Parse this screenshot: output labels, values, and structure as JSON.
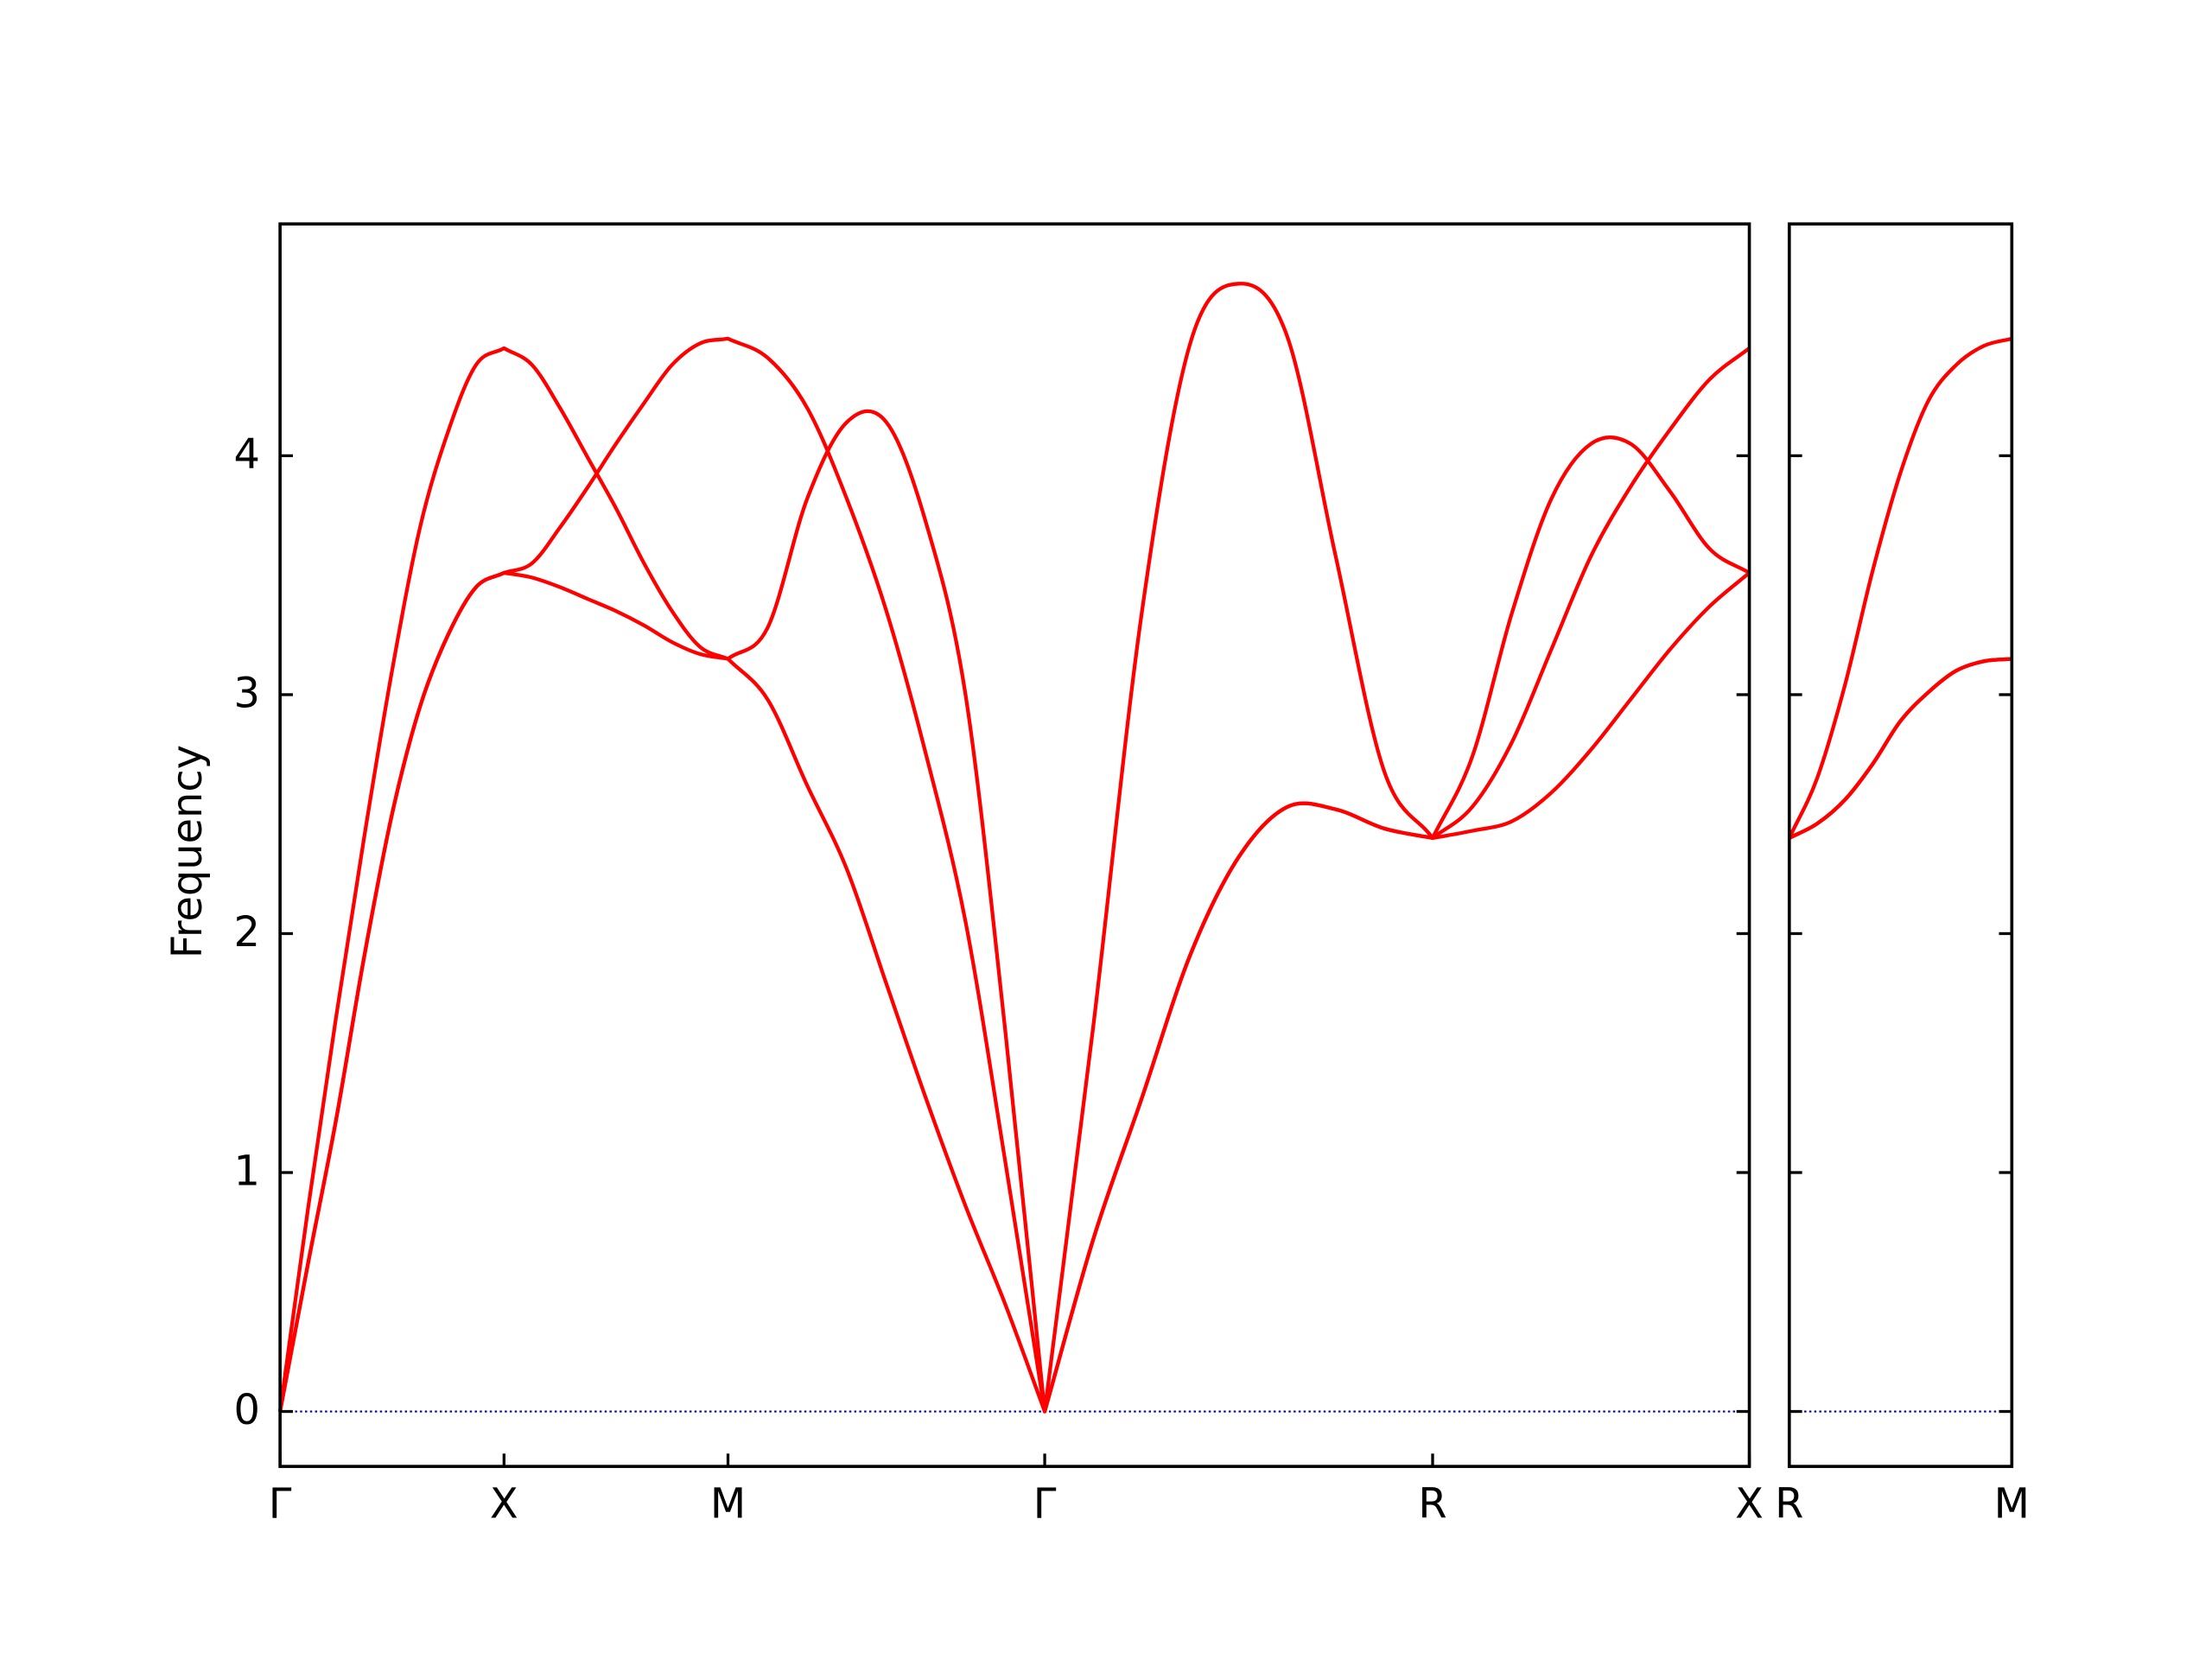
{
  "chart_data": [
    {
      "type": "line",
      "ylabel": "Frequency",
      "x": [
        0,
        0.0625,
        0.125,
        0.1875,
        0.25,
        0.3125,
        0.375,
        0.4375,
        0.5,
        0.5625,
        0.625,
        0.6875,
        0.75,
        0.8125,
        0.875,
        0.9375,
        1.0,
        1.0884,
        1.1768,
        1.2652,
        1.3536,
        1.442,
        1.5303,
        1.6187,
        1.7071,
        1.8154,
        1.9236,
        2.0319,
        2.1401,
        2.2484,
        2.3566,
        2.4649,
        2.5731,
        2.6615,
        2.7499,
        2.8383,
        2.9267,
        3.015,
        3.1034,
        3.1918,
        3.2802
      ],
      "series": [
        {
          "color": "#ff0000",
          "values": [
            0,
            0.62,
            1.22,
            1.9,
            2.5,
            2.95,
            3.25,
            3.45,
            3.51,
            3.49,
            3.45,
            3.4,
            3.35,
            3.29,
            3.22,
            3.17,
            3.15,
            2.98,
            2.62,
            2.27,
            1.79,
            1.31,
            0.86,
            0.45,
            0,
            0.72,
            1.31,
            1.91,
            2.32,
            2.53,
            2.52,
            2.44,
            2.4,
            2.43,
            2.47,
            2.59,
            2.77,
            2.98,
            3.19,
            3.37,
            3.51
          ]
        },
        {
          "color": "#ff0000",
          "values": [
            0,
            0.62,
            1.22,
            1.9,
            2.5,
            2.95,
            3.25,
            3.45,
            3.51,
            3.55,
            3.7,
            3.87,
            4.05,
            4.22,
            4.38,
            4.47,
            4.49,
            4.41,
            4.2,
            3.82,
            3.35,
            2.75,
            2.05,
            1.05,
            0,
            0.72,
            1.31,
            1.91,
            2.32,
            2.53,
            2.52,
            2.44,
            2.4,
            2.53,
            2.8,
            3.19,
            3.58,
            3.87,
            4.11,
            4.32,
            4.45
          ]
        },
        {
          "color": "#ff0000",
          "values": [
            0,
            0.85,
            1.65,
            2.4,
            3.1,
            3.7,
            4.1,
            4.38,
            4.45,
            4.38,
            4.2,
            3.99,
            3.78,
            3.55,
            3.35,
            3.2,
            3.15,
            3.28,
            3.82,
            4.14,
            4.14,
            3.72,
            3.0,
            1.6,
            0,
            1.61,
            3.34,
            4.47,
            4.72,
            4.5,
            3.58,
            2.68,
            2.4,
            2.74,
            3.34,
            3.82,
            4.05,
            4.05,
            3.85,
            3.61,
            3.51
          ]
        }
      ],
      "xlim": [
        0,
        3.2802
      ],
      "ylim": [
        -0.23,
        4.97
      ],
      "xticks": [
        {
          "value": 0,
          "label": "Γ"
        },
        {
          "value": 0.5,
          "label": "X"
        },
        {
          "value": 1.0,
          "label": "M"
        },
        {
          "value": 1.7071,
          "label": "Γ"
        },
        {
          "value": 2.5731,
          "label": "R"
        },
        {
          "value": 3.2802,
          "label": "X"
        }
      ],
      "yticks": [
        0,
        1,
        2,
        3,
        4
      ],
      "ytick_labels": true,
      "hline": {
        "y": 0,
        "color": "#0000aa",
        "style": "dotted"
      }
    },
    {
      "type": "line",
      "x": [
        0,
        0.0884,
        0.1768,
        0.2652,
        0.3536,
        0.4419,
        0.5303,
        0.6187,
        0.7071
      ],
      "series": [
        {
          "color": "#ff0000",
          "values": [
            2.4,
            2.46,
            2.56,
            2.71,
            2.89,
            3.01,
            3.1,
            3.14,
            3.15
          ]
        },
        {
          "color": "#ff0000",
          "values": [
            2.4,
            2.46,
            2.56,
            2.71,
            2.89,
            3.01,
            3.1,
            3.14,
            3.15
          ]
        },
        {
          "color": "#ff0000",
          "values": [
            2.4,
            2.65,
            3.04,
            3.52,
            3.93,
            4.23,
            4.38,
            4.46,
            4.49
          ]
        }
      ],
      "xlim": [
        0,
        0.7071
      ],
      "ylim": [
        -0.23,
        4.97
      ],
      "xticks": [
        {
          "value": 0,
          "label": "R"
        },
        {
          "value": 0.7071,
          "label": "M"
        }
      ],
      "yticks": [
        0,
        1,
        2,
        3,
        4
      ],
      "ytick_labels": false,
      "hline": {
        "y": 0,
        "color": "#0000aa",
        "style": "dotted"
      }
    }
  ]
}
